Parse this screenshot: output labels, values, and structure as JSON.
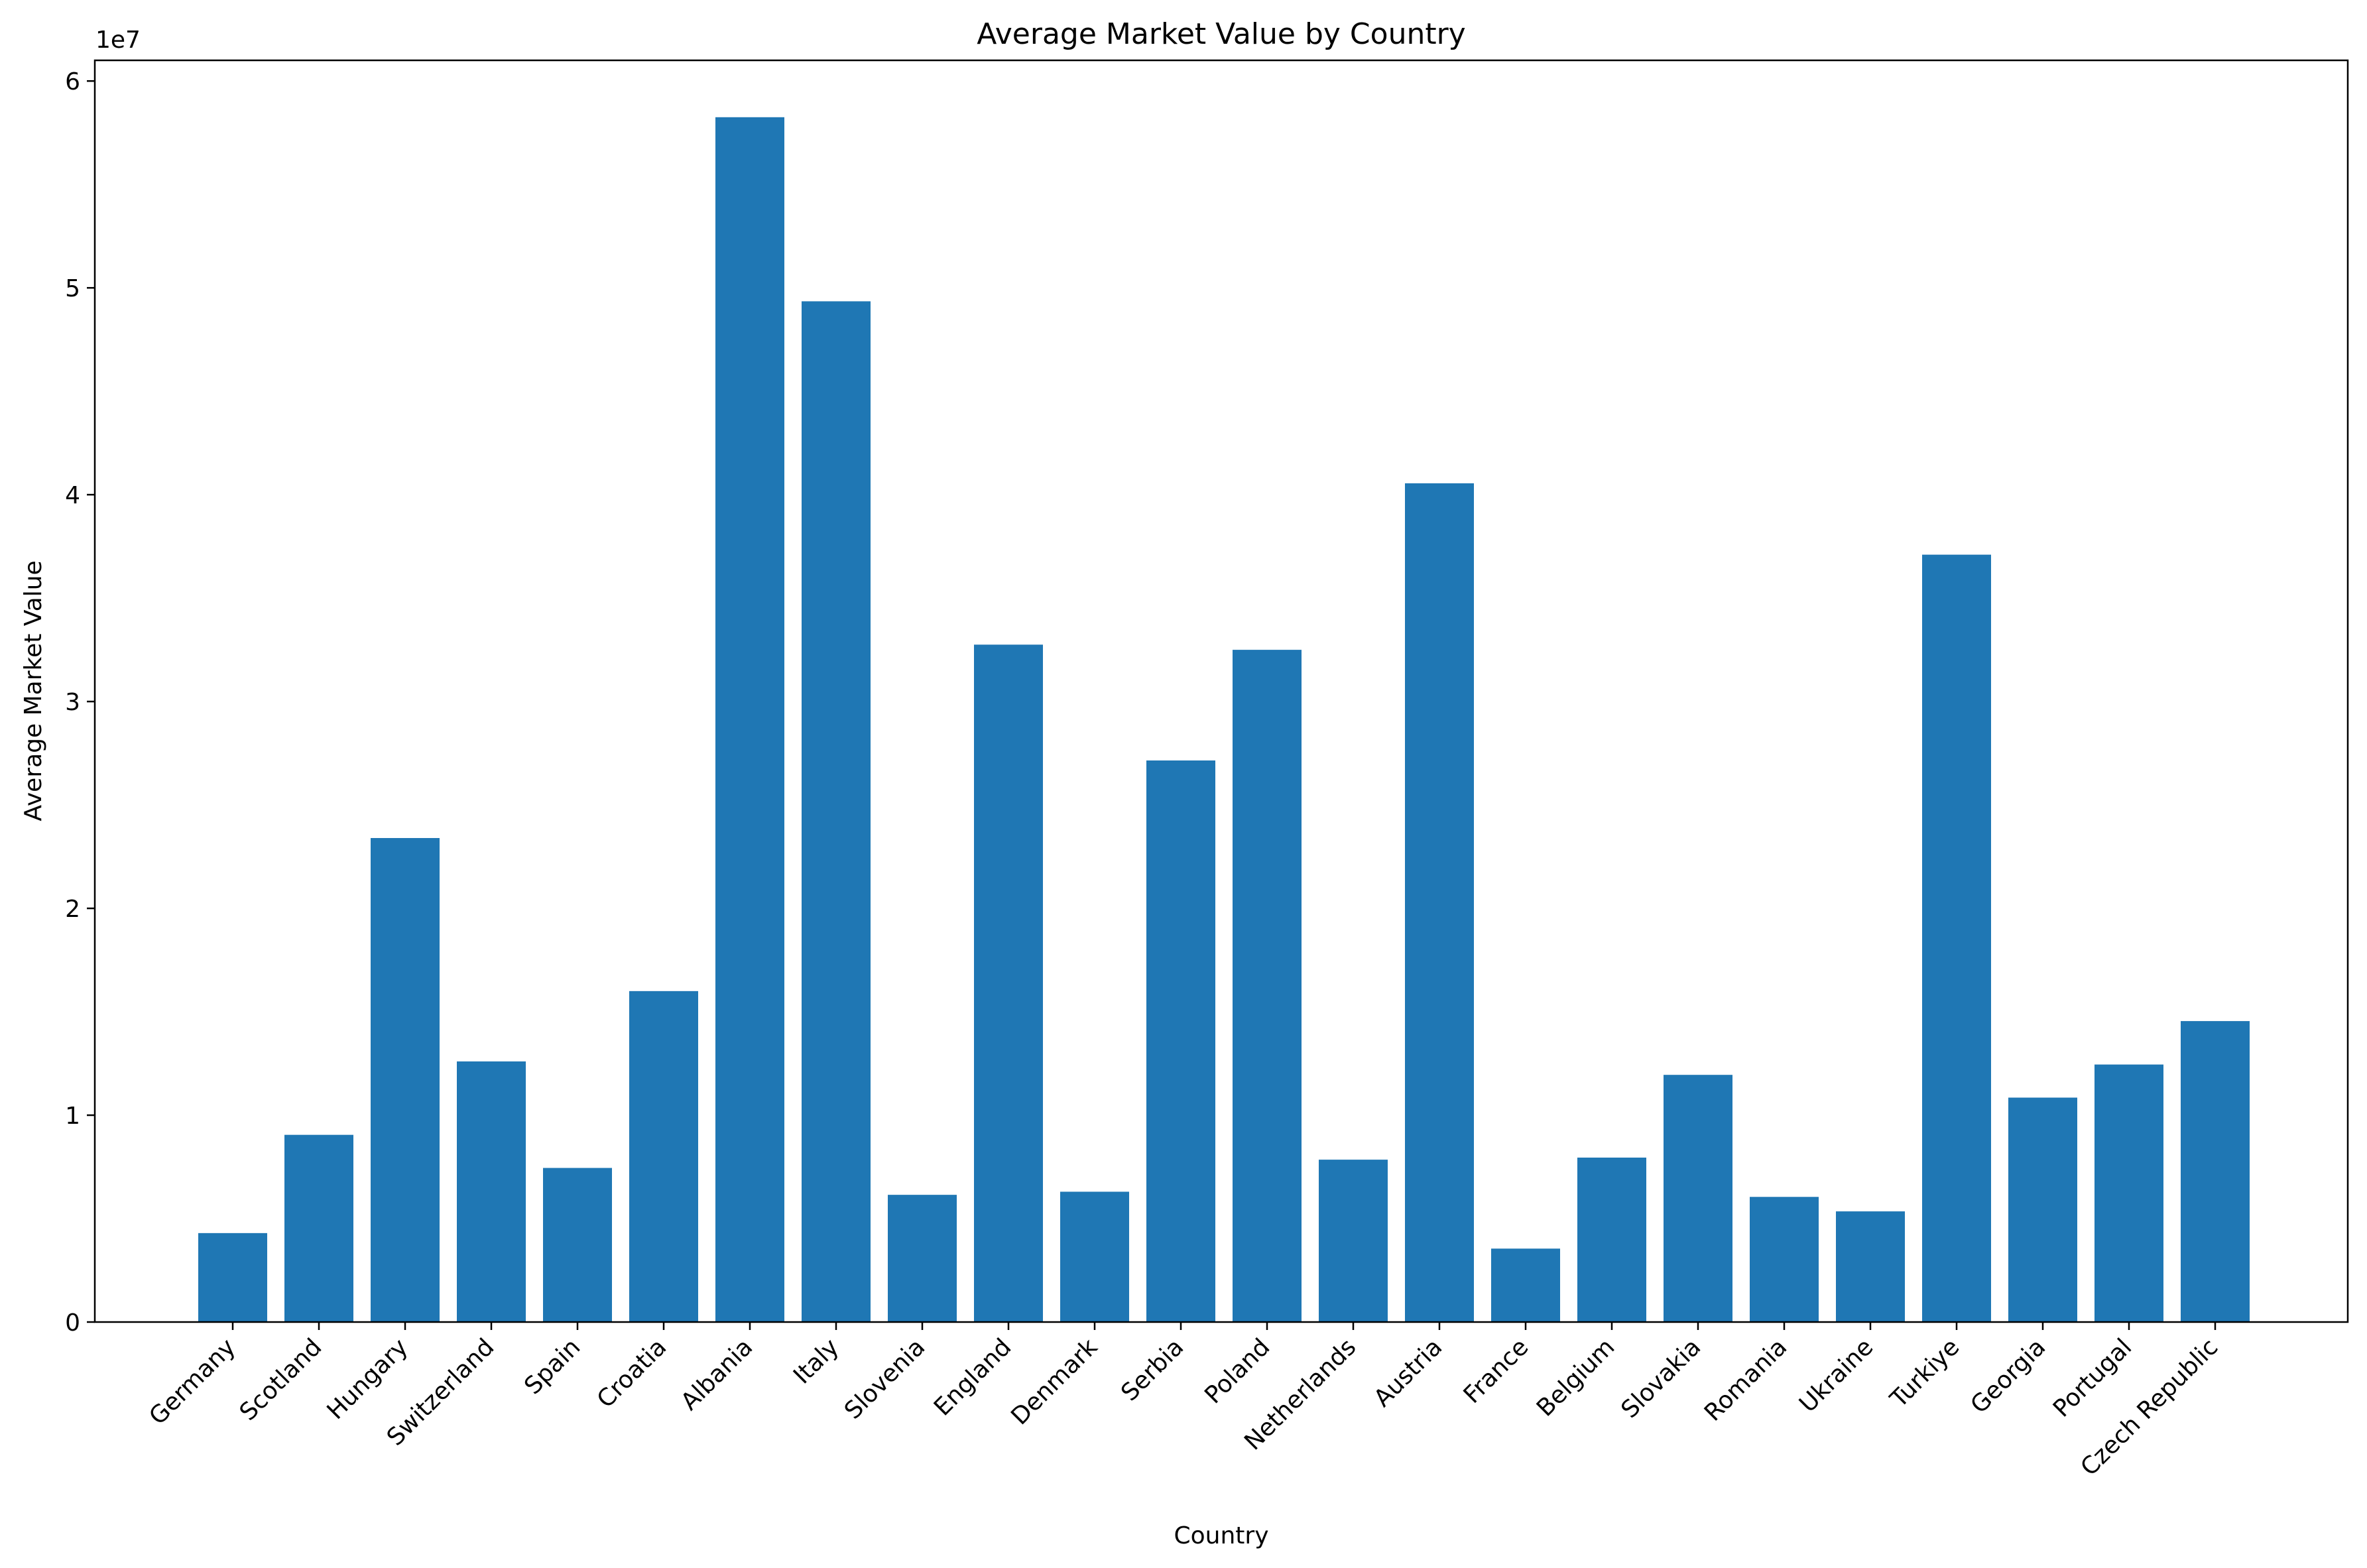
{
  "chart_data": {
    "type": "bar",
    "title": "Average Market Value by Country",
    "xlabel": "Country",
    "ylabel": "Average Market Value",
    "y_offset_label": "1e7",
    "ylim": [
      0,
      61000000
    ],
    "y_ticks": [
      0,
      10000000,
      20000000,
      30000000,
      40000000,
      50000000,
      60000000
    ],
    "y_tick_labels": [
      "0",
      "1",
      "2",
      "3",
      "4",
      "5",
      "6"
    ],
    "grid": false,
    "bar_color": "#1f77b4",
    "categories": [
      "Germany",
      "Scotland",
      "Hungary",
      "Switzerland",
      "Spain",
      "Croatia",
      "Albania",
      "Italy",
      "Slovenia",
      "England",
      "Denmark",
      "Serbia",
      "Poland",
      "Netherlands",
      "Austria",
      "France",
      "Belgium",
      "Slovakia",
      "Romania",
      "Ukraine",
      "Turkiye",
      "Georgia",
      "Portugal",
      "Czech Republic"
    ],
    "values": [
      4300000,
      9050000,
      23400000,
      12600000,
      7450000,
      16000000,
      58250000,
      49350000,
      6150000,
      32750000,
      6300000,
      27150000,
      32500000,
      7850000,
      40550000,
      3550000,
      7950000,
      11950000,
      6050000,
      5350000,
      37100000,
      10850000,
      12450000,
      14550000
    ]
  }
}
